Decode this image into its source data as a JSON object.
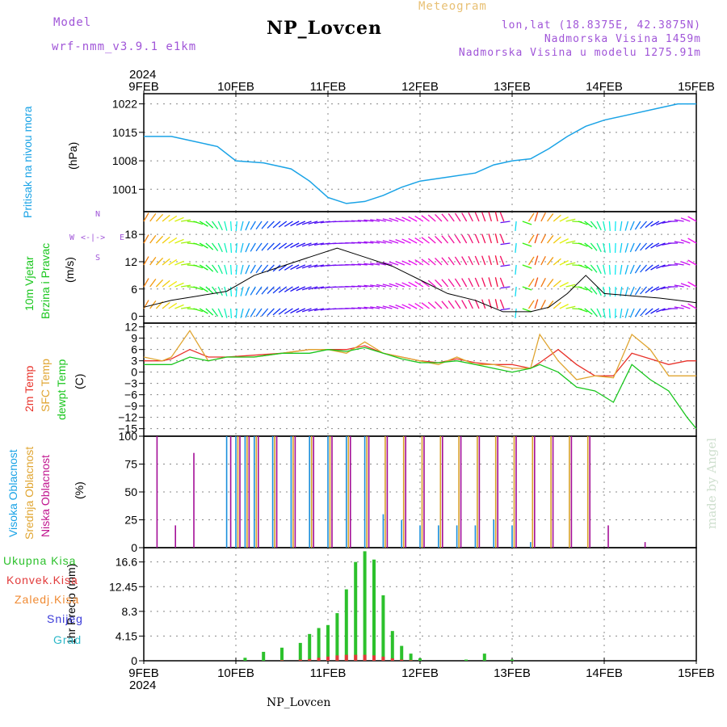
{
  "header": {
    "model_label": "Model",
    "model_name": "wrf-nmm_v3.9.1 e1km",
    "station": "NP_Lovcen",
    "meteogram": "Meteogram",
    "lonlat": "lon,lat (18.8375E, 42.3875N)",
    "altitude": "Nadmorska Visina 1459m",
    "model_altitude": "Nadmorska Visina u modelu 1275.91m",
    "year_top": "2024",
    "year_bottom": "2024",
    "footer_station": "NP_Lovcen",
    "watermark": "made by Angel"
  },
  "time_axis": {
    "labels": [
      "9FEB",
      "10FEB",
      "11FEB",
      "12FEB",
      "13FEB",
      "14FEB",
      "15FEB"
    ]
  },
  "panel_labels": {
    "pressure": "Pritisak na nivou mora",
    "pressure_unit": "(hPa)",
    "wind_1": "10m Vjetar",
    "wind_2": "Brzina i Pravac",
    "wind_unit": "(m/s)",
    "compass_w": "W",
    "compass_e": "E",
    "compass_n": "N",
    "compass_s": "S",
    "temp_2m": "2m Temp",
    "temp_sfc": "SFC Temp",
    "temp_dew": "dewpt Temp",
    "temp_unit": "(C)",
    "cloud_high": "Visoka Oblacnost",
    "cloud_mid": "Srednja Oblacnost",
    "cloud_low": "Niska Oblacnost",
    "cloud_unit": "(%)",
    "precip_unit": "1hr Precip (mm)",
    "precip_total": "Ukupna Kisa",
    "precip_conv": "Konvek.Kisa",
    "precip_frz": "Zaledj.Kisa",
    "precip_snow": "Snijeg",
    "precip_grad": "Grad"
  },
  "colors": {
    "pressure": "#1aa3e6",
    "temp_2m": "#e8322a",
    "temp_sfc": "#e0a531",
    "temp_dew": "#19c61d",
    "cloud_high": "#1b8fdc",
    "cloud_mid": "#d9a12a",
    "cloud_low": "#a40f98",
    "precip_total": "#2cc12c",
    "precip_conv": "#e23a3a",
    "precip_frz": "#f08a32",
    "precip_snow": "#3a3ad8",
    "precip_grad": "#2cb8c8",
    "model": "#a055d8",
    "meteogram": "#e8c074"
  },
  "chart_data": [
    {
      "type": "line",
      "panel": "pressure",
      "x_days": [
        0,
        0.3,
        0.5,
        0.8,
        1.0,
        1.3,
        1.6,
        1.8,
        2.0,
        2.2,
        2.4,
        2.6,
        2.8,
        3.0,
        3.3,
        3.6,
        3.8,
        4.0,
        4.2,
        4.4,
        4.6,
        4.8,
        5.0,
        5.3,
        5.6,
        5.8,
        6.0
      ],
      "values": [
        1014,
        1014,
        1013,
        1011.5,
        1008,
        1007.5,
        1006,
        1003,
        999,
        997.5,
        998,
        999.5,
        1001.5,
        1003,
        1004,
        1005,
        1007,
        1008,
        1008.5,
        1011,
        1014,
        1016.5,
        1018,
        1019.5,
        1021,
        1022,
        1022
      ],
      "yticks": [
        1001,
        1008,
        1015,
        1022
      ],
      "ylim": [
        995.5,
        1024.5
      ],
      "grid": true
    },
    {
      "type": "line",
      "panel": "wind",
      "x_days": [
        0,
        0.3,
        0.6,
        0.9,
        1.2,
        1.5,
        1.8,
        2.1,
        2.4,
        2.7,
        3.0,
        3.3,
        3.6,
        3.9,
        4.2,
        4.4,
        4.6,
        4.8,
        5.0,
        5.3,
        5.6,
        5.8,
        6.0
      ],
      "values": [
        2,
        3.5,
        4.5,
        5.5,
        9,
        11,
        13,
        15,
        13,
        11,
        8,
        5,
        3.5,
        1,
        1,
        2,
        5,
        9,
        5,
        4.5,
        4,
        3.5,
        3
      ],
      "directions_deg": [
        30,
        60,
        120,
        170,
        210,
        230,
        250,
        265,
        275,
        285,
        300,
        320,
        335,
        350,
        10,
        40,
        80,
        130,
        170,
        200,
        240,
        270,
        300
      ],
      "yticks": [
        0,
        6,
        12,
        18
      ],
      "ylim": [
        -1.5,
        23
      ],
      "grid": true
    },
    {
      "type": "line",
      "panel": "temperature",
      "x_days": [
        0,
        0.2,
        0.3,
        0.5,
        0.7,
        0.9,
        1.2,
        1.5,
        1.8,
        2.0,
        2.2,
        2.4,
        2.6,
        2.8,
        3.0,
        3.2,
        3.4,
        3.6,
        3.8,
        4.0,
        4.2,
        4.3,
        4.5,
        4.7,
        4.9,
        5.1,
        5.3,
        5.5,
        5.7,
        5.9,
        6.0
      ],
      "series": [
        {
          "name": "2m Temp",
          "values": [
            3,
            3,
            3.5,
            6,
            4,
            4,
            4.5,
            5,
            6,
            6,
            6,
            7,
            5,
            4,
            3,
            2.5,
            3.5,
            2.5,
            2,
            2,
            1,
            2.5,
            6,
            2,
            -1,
            -1,
            5,
            3.5,
            2,
            3,
            3
          ]
        },
        {
          "name": "SFC Temp",
          "values": [
            4,
            3,
            4,
            11,
            3,
            4,
            4,
            5,
            6,
            6,
            5,
            8,
            5,
            4,
            3,
            2,
            4,
            2,
            2,
            1,
            1,
            10,
            3,
            -2,
            -1,
            -1.5,
            10,
            6,
            -1,
            -1,
            -1
          ]
        },
        {
          "name": "dewpt Temp",
          "values": [
            2,
            2,
            2,
            4,
            3,
            4,
            4,
            5,
            5,
            6,
            5.5,
            6.5,
            5,
            3.5,
            2.5,
            2.5,
            3,
            2,
            1,
            0,
            1,
            2,
            0,
            -4,
            -5,
            -8,
            2,
            -2,
            -5,
            -12,
            -15
          ]
        }
      ],
      "yticks": [
        12,
        9,
        6,
        3,
        0,
        -3,
        -6,
        -9,
        -12,
        -15
      ],
      "ylim": [
        -17,
        13
      ],
      "grid": true
    },
    {
      "type": "bar",
      "panel": "cloud",
      "x_days": [
        0.1,
        0.3,
        0.5,
        0.9,
        1.0,
        1.1,
        1.2,
        1.4,
        1.6,
        1.8,
        2.0,
        2.2,
        2.4,
        2.6,
        2.8,
        3.0,
        3.2,
        3.4,
        3.6,
        3.8,
        4.0,
        4.2,
        4.4,
        4.6,
        4.8,
        5.0,
        5.2,
        5.4,
        5.6
      ],
      "series": [
        {
          "name": "Visoka Oblacnost",
          "values": [
            0,
            0,
            0,
            100,
            100,
            100,
            100,
            100,
            100,
            100,
            100,
            100,
            100,
            30,
            25,
            20,
            20,
            20,
            20,
            25,
            20,
            5,
            0,
            0,
            0,
            0,
            0,
            0,
            0
          ]
        },
        {
          "name": "Srednja Oblacnost",
          "values": [
            0,
            0,
            0,
            0,
            100,
            100,
            100,
            100,
            100,
            100,
            100,
            100,
            100,
            100,
            100,
            100,
            100,
            100,
            100,
            100,
            100,
            100,
            100,
            100,
            100,
            0,
            0,
            0,
            0
          ]
        },
        {
          "name": "Niska Oblacnost",
          "values": [
            100,
            20,
            85,
            100,
            100,
            100,
            100,
            100,
            100,
            100,
            100,
            100,
            100,
            100,
            100,
            100,
            100,
            100,
            100,
            100,
            100,
            100,
            100,
            100,
            100,
            20,
            0,
            5,
            0
          ]
        }
      ],
      "yticks": [
        0,
        25,
        50,
        75,
        100
      ],
      "ylim": [
        0,
        100
      ],
      "grid": true
    },
    {
      "type": "bar",
      "panel": "precipitation",
      "x_days": [
        1.1,
        1.3,
        1.5,
        1.7,
        1.8,
        1.9,
        2.0,
        2.1,
        2.2,
        2.3,
        2.4,
        2.5,
        2.6,
        2.7,
        2.8,
        2.9,
        3.0,
        3.5,
        3.7,
        4.0
      ],
      "series": [
        {
          "name": "Ukupna Kisa",
          "values": [
            0.5,
            1.5,
            2.2,
            3.0,
            4.5,
            5.5,
            6.0,
            8.0,
            12.0,
            16.6,
            18.4,
            17.0,
            11.0,
            5.0,
            2.5,
            1.2,
            0.4,
            0.2,
            1.2,
            0.2
          ]
        },
        {
          "name": "Konvek.Kisa",
          "values": [
            0,
            0,
            0.1,
            0.2,
            0.3,
            0.5,
            0.7,
            0.9,
            1.0,
            1.0,
            1.0,
            0.9,
            0.7,
            0.4,
            0.2,
            0.1,
            0,
            0,
            0,
            0
          ]
        }
      ],
      "yticks": [
        0,
        4.15,
        8.3,
        12.45,
        16.6
      ],
      "ylim": [
        0,
        19
      ],
      "grid": true
    }
  ]
}
